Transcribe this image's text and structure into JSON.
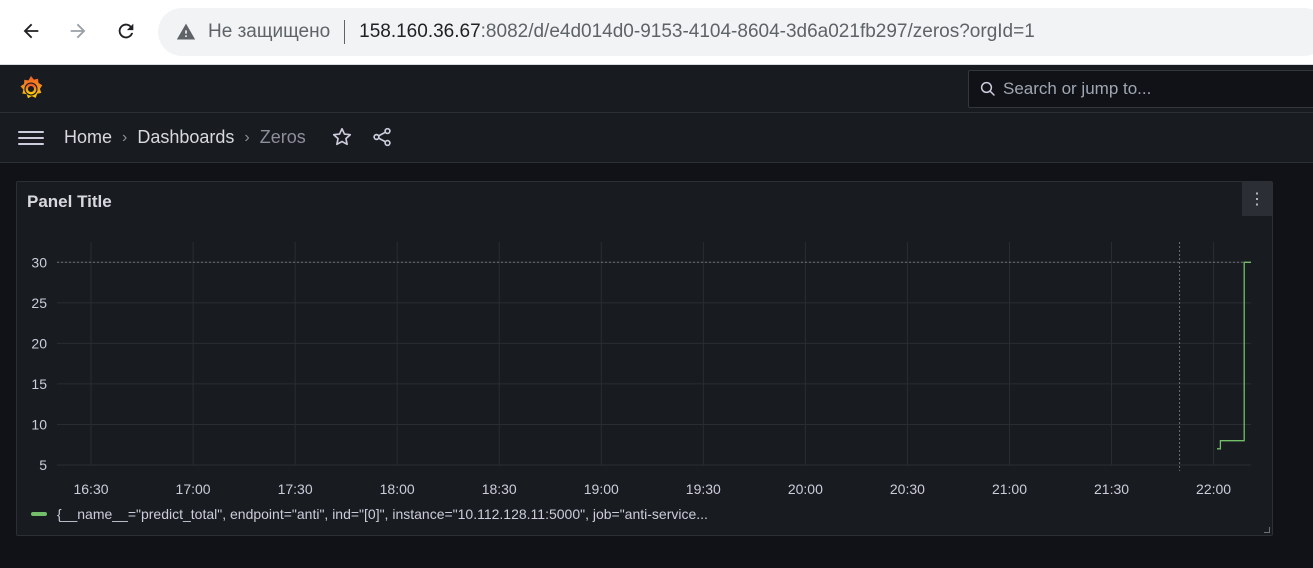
{
  "browser": {
    "security_label": "Не защищено",
    "url_host": "158.160.36.67",
    "url_path": ":8082/d/e4d014d0-9153-4104-8604-3d6a021fb297/zeros?orgId=1"
  },
  "topbar": {
    "search_placeholder": "Search or jump to..."
  },
  "breadcrumb": {
    "home": "Home",
    "dashboards": "Dashboards",
    "current": "Zeros"
  },
  "panel": {
    "title": "Panel Title",
    "legend": "{__name__=\"predict_total\", endpoint=\"anti\", ind=\"[0]\", instance=\"10.112.128.11:5000\", job=\"anti-service..."
  },
  "colors": {
    "series": "#73bf69",
    "background": "#111217",
    "panel": "#181b1f"
  },
  "chart_data": {
    "type": "line",
    "title": "Panel Title",
    "xlabel": "",
    "ylabel": "",
    "y_ticks": [
      30,
      25,
      20,
      15,
      10,
      5
    ],
    "x_ticks": [
      "16:30",
      "17:00",
      "17:30",
      "18:00",
      "18:30",
      "19:00",
      "19:30",
      "20:00",
      "20:30",
      "21:00",
      "21:30",
      "22:00"
    ],
    "ylim": [
      5,
      32.5
    ],
    "xlim": [
      "16:20",
      "22:11"
    ],
    "grid": true,
    "legend_position": "bottom-left",
    "threshold_line_y": 30,
    "crosshair_x": "21:50",
    "series": [
      {
        "name": "{__name__=\"predict_total\", endpoint=\"anti\", ind=\"[0]\", instance=\"10.112.128.11:5000\", job=\"anti-service...",
        "points": [
          {
            "x": "22:01",
            "y": 7
          },
          {
            "x": "22:02",
            "y": 7
          },
          {
            "x": "22:02",
            "y": 8
          },
          {
            "x": "22:09",
            "y": 8
          },
          {
            "x": "22:09",
            "y": 30
          },
          {
            "x": "22:11",
            "y": 30
          }
        ]
      }
    ]
  }
}
